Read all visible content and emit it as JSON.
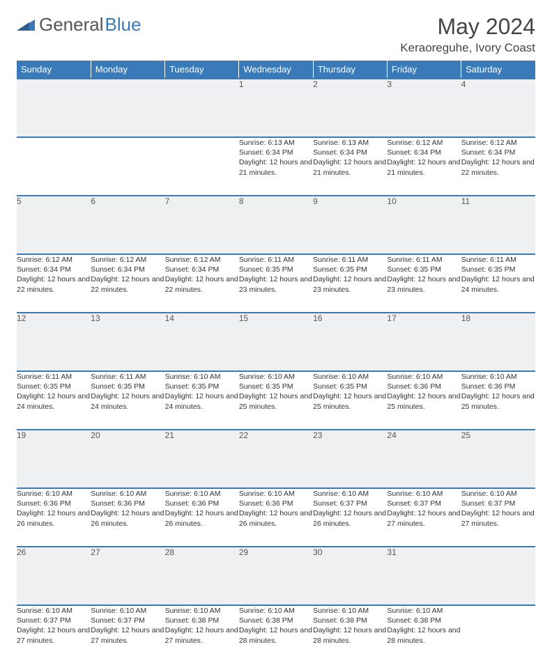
{
  "brand": {
    "part1": "General",
    "part2": "Blue"
  },
  "title": "May 2024",
  "location": "Keraoreguhe, Ivory Coast",
  "header_bg": "#3a7ab8",
  "daynum_bg": "#eef0f2",
  "border_color": "#3a7ab8",
  "days": [
    "Sunday",
    "Monday",
    "Tuesday",
    "Wednesday",
    "Thursday",
    "Friday",
    "Saturday"
  ],
  "weeks": [
    [
      null,
      null,
      null,
      {
        "n": "1",
        "sr": "6:13 AM",
        "ss": "6:34 PM",
        "dl": "12 hours and 21 minutes."
      },
      {
        "n": "2",
        "sr": "6:13 AM",
        "ss": "6:34 PM",
        "dl": "12 hours and 21 minutes."
      },
      {
        "n": "3",
        "sr": "6:12 AM",
        "ss": "6:34 PM",
        "dl": "12 hours and 21 minutes."
      },
      {
        "n": "4",
        "sr": "6:12 AM",
        "ss": "6:34 PM",
        "dl": "12 hours and 22 minutes."
      }
    ],
    [
      {
        "n": "5",
        "sr": "6:12 AM",
        "ss": "6:34 PM",
        "dl": "12 hours and 22 minutes."
      },
      {
        "n": "6",
        "sr": "6:12 AM",
        "ss": "6:34 PM",
        "dl": "12 hours and 22 minutes."
      },
      {
        "n": "7",
        "sr": "6:12 AM",
        "ss": "6:34 PM",
        "dl": "12 hours and 22 minutes."
      },
      {
        "n": "8",
        "sr": "6:11 AM",
        "ss": "6:35 PM",
        "dl": "12 hours and 23 minutes."
      },
      {
        "n": "9",
        "sr": "6:11 AM",
        "ss": "6:35 PM",
        "dl": "12 hours and 23 minutes."
      },
      {
        "n": "10",
        "sr": "6:11 AM",
        "ss": "6:35 PM",
        "dl": "12 hours and 23 minutes."
      },
      {
        "n": "11",
        "sr": "6:11 AM",
        "ss": "6:35 PM",
        "dl": "12 hours and 24 minutes."
      }
    ],
    [
      {
        "n": "12",
        "sr": "6:11 AM",
        "ss": "6:35 PM",
        "dl": "12 hours and 24 minutes."
      },
      {
        "n": "13",
        "sr": "6:11 AM",
        "ss": "6:35 PM",
        "dl": "12 hours and 24 minutes."
      },
      {
        "n": "14",
        "sr": "6:10 AM",
        "ss": "6:35 PM",
        "dl": "12 hours and 24 minutes."
      },
      {
        "n": "15",
        "sr": "6:10 AM",
        "ss": "6:35 PM",
        "dl": "12 hours and 25 minutes."
      },
      {
        "n": "16",
        "sr": "6:10 AM",
        "ss": "6:35 PM",
        "dl": "12 hours and 25 minutes."
      },
      {
        "n": "17",
        "sr": "6:10 AM",
        "ss": "6:36 PM",
        "dl": "12 hours and 25 minutes."
      },
      {
        "n": "18",
        "sr": "6:10 AM",
        "ss": "6:36 PM",
        "dl": "12 hours and 25 minutes."
      }
    ],
    [
      {
        "n": "19",
        "sr": "6:10 AM",
        "ss": "6:36 PM",
        "dl": "12 hours and 26 minutes."
      },
      {
        "n": "20",
        "sr": "6:10 AM",
        "ss": "6:36 PM",
        "dl": "12 hours and 26 minutes."
      },
      {
        "n": "21",
        "sr": "6:10 AM",
        "ss": "6:36 PM",
        "dl": "12 hours and 26 minutes."
      },
      {
        "n": "22",
        "sr": "6:10 AM",
        "ss": "6:36 PM",
        "dl": "12 hours and 26 minutes."
      },
      {
        "n": "23",
        "sr": "6:10 AM",
        "ss": "6:37 PM",
        "dl": "12 hours and 26 minutes."
      },
      {
        "n": "24",
        "sr": "6:10 AM",
        "ss": "6:37 PM",
        "dl": "12 hours and 27 minutes."
      },
      {
        "n": "25",
        "sr": "6:10 AM",
        "ss": "6:37 PM",
        "dl": "12 hours and 27 minutes."
      }
    ],
    [
      {
        "n": "26",
        "sr": "6:10 AM",
        "ss": "6:37 PM",
        "dl": "12 hours and 27 minutes."
      },
      {
        "n": "27",
        "sr": "6:10 AM",
        "ss": "6:37 PM",
        "dl": "12 hours and 27 minutes."
      },
      {
        "n": "28",
        "sr": "6:10 AM",
        "ss": "6:38 PM",
        "dl": "12 hours and 27 minutes."
      },
      {
        "n": "29",
        "sr": "6:10 AM",
        "ss": "6:38 PM",
        "dl": "12 hours and 28 minutes."
      },
      {
        "n": "30",
        "sr": "6:10 AM",
        "ss": "6:38 PM",
        "dl": "12 hours and 28 minutes."
      },
      {
        "n": "31",
        "sr": "6:10 AM",
        "ss": "6:38 PM",
        "dl": "12 hours and 28 minutes."
      },
      null
    ]
  ],
  "labels": {
    "sunrise": "Sunrise:",
    "sunset": "Sunset:",
    "daylight": "Daylight:"
  }
}
